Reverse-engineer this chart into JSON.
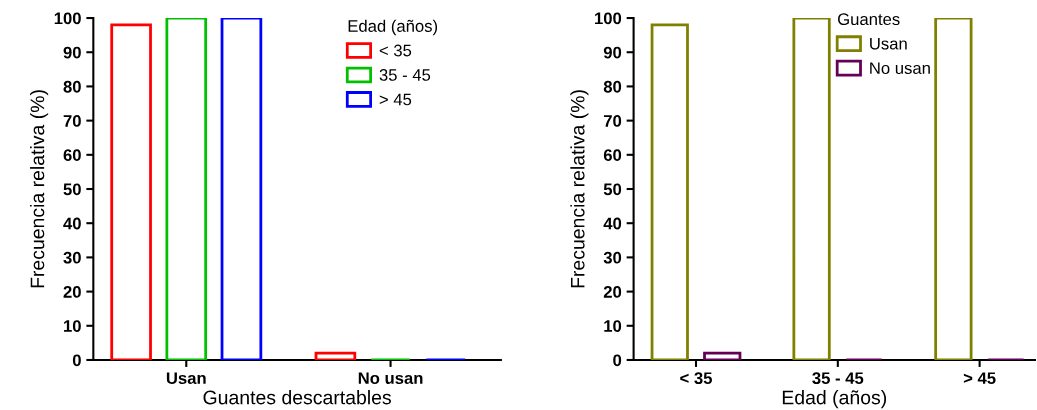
{
  "chart_data": [
    {
      "type": "bar",
      "xlabel": "Guantes descartables",
      "ylabel": "Frecuencia relativa (%)",
      "legend_title": "Edad (años)",
      "categories": [
        "Usan",
        "No usan"
      ],
      "series": [
        {
          "name": "< 35",
          "color": "#ff0000",
          "values": [
            98,
            2
          ]
        },
        {
          "name": "35 - 45",
          "color": "#00c000",
          "values": [
            100,
            0
          ]
        },
        {
          "name": "> 45",
          "color": "#0000ff",
          "values": [
            100,
            0
          ]
        }
      ],
      "ylim": [
        0,
        100
      ],
      "yticks": [
        0,
        10,
        20,
        30,
        40,
        50,
        60,
        70,
        80,
        90,
        100
      ],
      "grid": false,
      "legend": "top right"
    },
    {
      "type": "bar",
      "xlabel": "Edad (años)",
      "ylabel": "Frecuencia relativa (%)",
      "legend_title": "Guantes",
      "categories": [
        "< 35",
        "35 - 45",
        "> 45"
      ],
      "series": [
        {
          "name": "Usan",
          "color": "#808000",
          "values": [
            98,
            100,
            100
          ]
        },
        {
          "name": "No usan",
          "color": "#660055",
          "values": [
            2,
            0,
            0
          ]
        }
      ],
      "ylim": [
        0,
        100
      ],
      "yticks": [
        0,
        10,
        20,
        30,
        40,
        50,
        60,
        70,
        80,
        90,
        100
      ],
      "grid": false,
      "legend": "top right"
    }
  ]
}
